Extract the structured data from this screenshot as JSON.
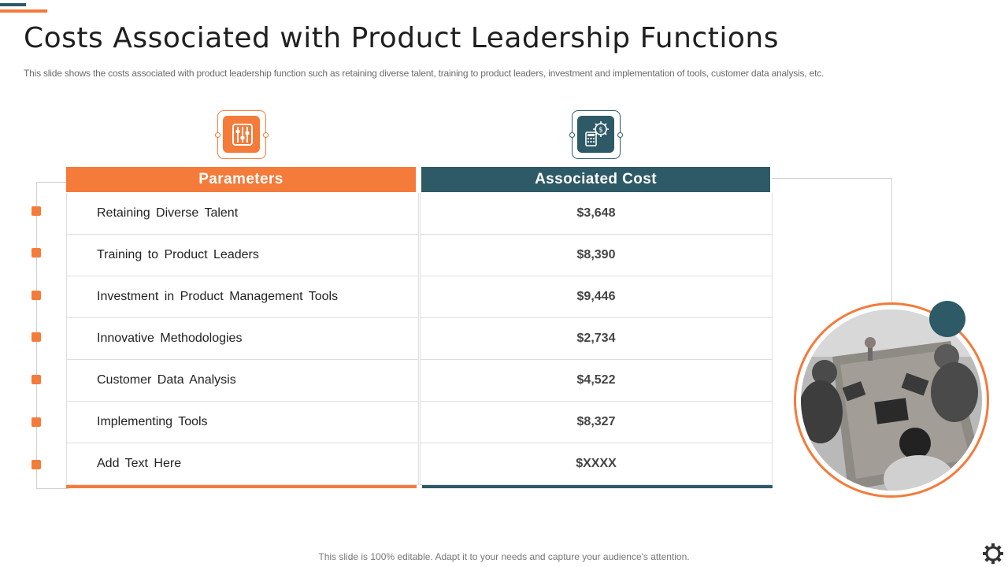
{
  "slide": {
    "title": "Costs Associated with Product Leadership Functions",
    "subtitle": "This slide shows the costs associated with product leadership function such as retaining diverse talent, training to product leaders, investment and implementation of tools, customer data analysis, etc.",
    "footer": "This slide is 100% editable. Adapt it to your needs and capture your audience's attention."
  },
  "icons": {
    "parameters_icon": "sliders-icon",
    "cost_icon": "calculator-gear-dollar-icon",
    "settings_icon": "gear-icon"
  },
  "colors": {
    "accent_orange": "#f47b3a",
    "accent_teal": "#2d5a66"
  },
  "table": {
    "headers": {
      "parameters": "Parameters",
      "cost": "Associated Cost"
    },
    "rows": [
      {
        "parameter": "Retaining Diverse Talent",
        "cost": "$3,648"
      },
      {
        "parameter": "Training to Product Leaders",
        "cost": "$8,390"
      },
      {
        "parameter": "Investment in Product Management Tools",
        "cost": "$9,446"
      },
      {
        "parameter": "Innovative Methodologies",
        "cost": "$2,734"
      },
      {
        "parameter": "Customer Data Analysis",
        "cost": "$4,522"
      },
      {
        "parameter": "Implementing Tools",
        "cost": "$8,327"
      },
      {
        "parameter": "Add Text Here",
        "cost": "$XXXX"
      }
    ]
  }
}
